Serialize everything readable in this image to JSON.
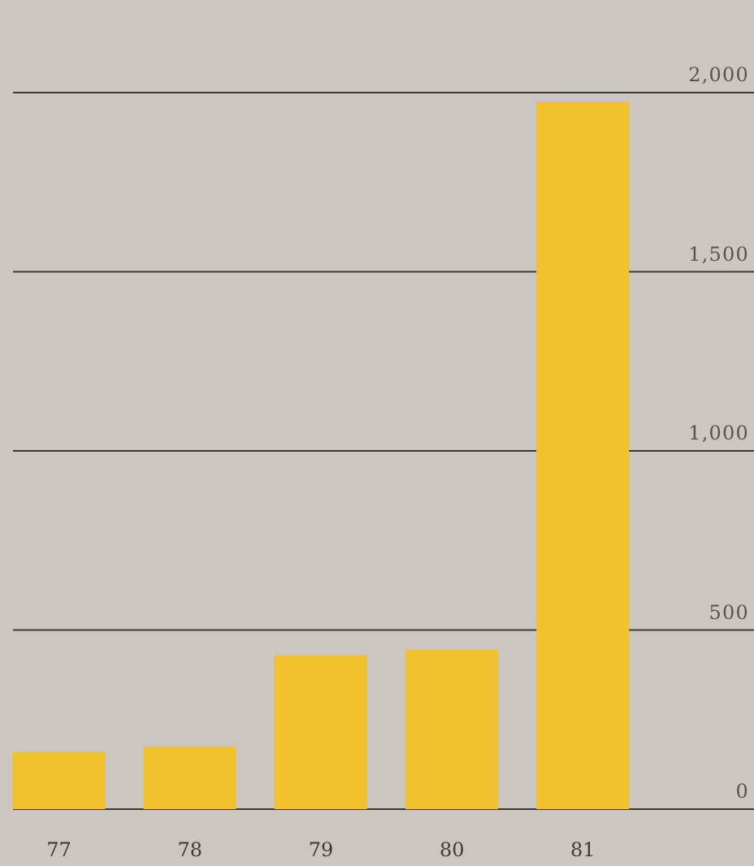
{
  "chart_data": {
    "type": "bar",
    "categories": [
      "77",
      "78",
      "79",
      "80",
      "81"
    ],
    "values": [
      160,
      175,
      430,
      445,
      1975
    ],
    "color": "#f2c12e",
    "ylim": [
      0,
      2000
    ],
    "yticks": [
      0,
      500,
      {
        "value": 1000,
        "label": "1,000"
      },
      {
        "value": 1500,
        "label": "1,500"
      },
      {
        "value": 2000,
        "label": "2,000"
      }
    ],
    "grid": "y"
  }
}
